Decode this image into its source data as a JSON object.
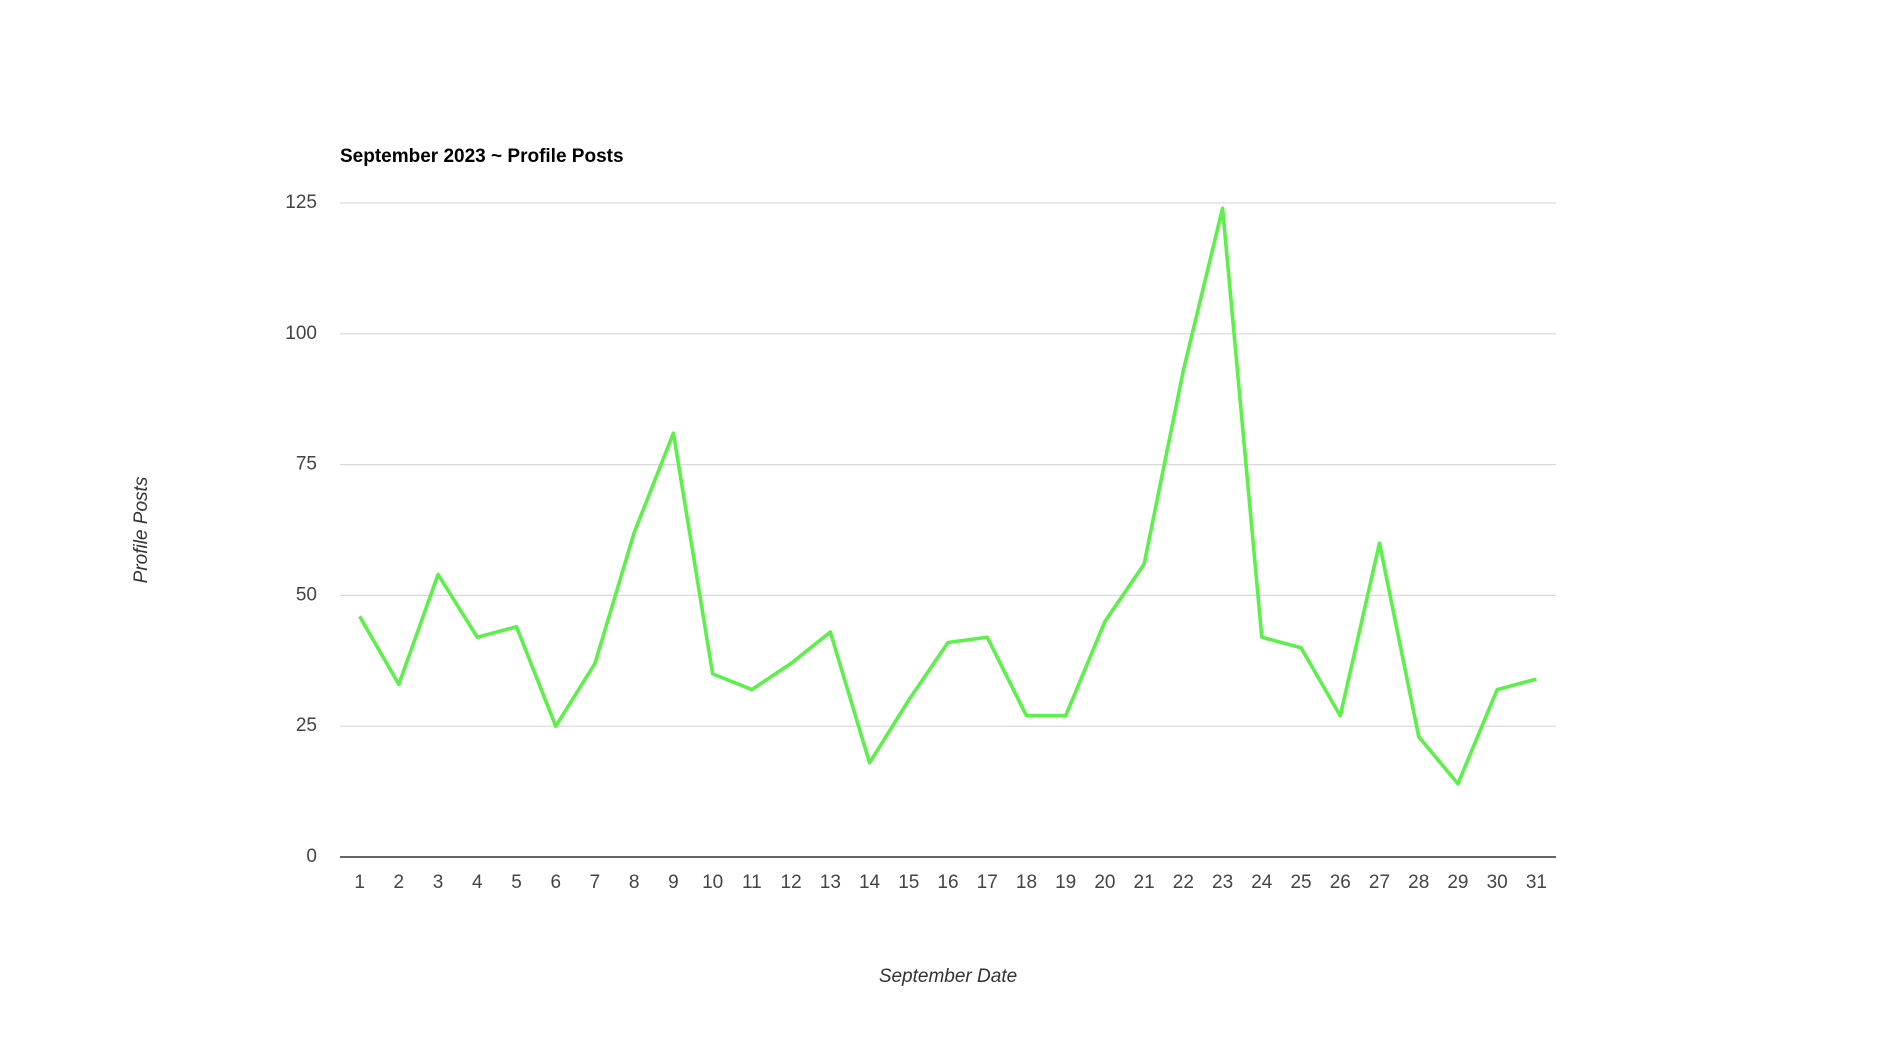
{
  "chart_data": {
    "type": "line",
    "title": "September 2023 ~ Profile Posts",
    "x_label": "September Date",
    "y_label": "Profile Posts",
    "categories": [
      "1",
      "2",
      "3",
      "4",
      "5",
      "6",
      "7",
      "8",
      "9",
      "10",
      "11",
      "12",
      "13",
      "14",
      "15",
      "16",
      "17",
      "18",
      "19",
      "20",
      "21",
      "22",
      "23",
      "24",
      "25",
      "26",
      "27",
      "28",
      "29",
      "30",
      "31"
    ],
    "series": [
      {
        "name": "Profile Posts",
        "color": "#5df04a",
        "values": [
          46,
          33,
          54,
          42,
          44,
          25,
          37,
          62,
          81,
          35,
          32,
          37,
          43,
          18,
          30,
          41,
          42,
          27,
          27,
          45,
          56,
          93,
          124,
          42,
          40,
          27,
          60,
          23,
          14,
          32,
          34
        ]
      }
    ],
    "ylim": [
      0,
      125
    ],
    "yticks": [
      0,
      25,
      50,
      75,
      100,
      125
    ],
    "grid": true
  }
}
